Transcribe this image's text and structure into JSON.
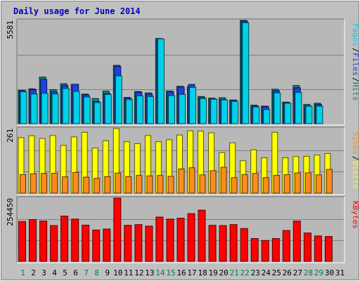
{
  "title": "Daily usage for June 2014",
  "colors": {
    "background": "#c0c0c0",
    "panel": "#b8b8b8",
    "pages": "#00d0e8",
    "files": "#2040e0",
    "hits": "#008880",
    "visits": "#ffff00",
    "sites": "#ff8c1a",
    "kbytes": "#ff0000",
    "title_text": "#0000c0",
    "weekend_day": "#008040"
  },
  "chart_data": [
    {
      "type": "bar",
      "title": "Daily usage for June 2014",
      "max_label": "5581",
      "ylim": [
        0,
        5581
      ],
      "categories": [
        "1",
        "2",
        "3",
        "4",
        "5",
        "6",
        "7",
        "8",
        "9",
        "10",
        "11",
        "12",
        "13",
        "14",
        "15",
        "16",
        "17",
        "18",
        "19",
        "20",
        "21",
        "22",
        "23",
        "24",
        "25",
        "26",
        "27",
        "28",
        "29",
        "30",
        "31"
      ],
      "ylabels": [
        {
          "text": "Pages",
          "color": "#00d0e8"
        },
        {
          "text": "Files",
          "color": "#2040e0"
        },
        {
          "text": "Hits",
          "color": "#008880"
        }
      ],
      "series": [
        {
          "name": "Hits",
          "values": [
            1800,
            1880,
            2520,
            1840,
            2160,
            2120,
            1600,
            1360,
            1760,
            3150,
            1420,
            1740,
            1660,
            4600,
            1760,
            2020,
            2000,
            1470,
            1380,
            1400,
            1280,
            5581,
            1000,
            950,
            1860,
            1160,
            2060,
            1040,
            1100,
            0,
            0
          ]
        },
        {
          "name": "Files",
          "values": [
            1780,
            1840,
            2390,
            1720,
            2060,
            2130,
            1560,
            1200,
            1620,
            3100,
            1380,
            1700,
            1600,
            4580,
            1720,
            1980,
            2120,
            1400,
            1340,
            1300,
            1260,
            5540,
            960,
            920,
            1780,
            1140,
            1940,
            960,
            1040,
            0,
            0
          ]
        },
        {
          "name": "Pages",
          "values": [
            1720,
            1600,
            1640,
            1600,
            1900,
            1740,
            1440,
            1140,
            1580,
            2580,
            1300,
            1500,
            1460,
            4580,
            1520,
            1580,
            1960,
            1360,
            1320,
            1280,
            1200,
            5450,
            900,
            760,
            1660,
            1100,
            1680,
            940,
            940,
            0,
            0
          ]
        }
      ]
    },
    {
      "type": "bar",
      "max_label": "261",
      "ylim": [
        0,
        261
      ],
      "categories": [
        "1",
        "2",
        "3",
        "4",
        "5",
        "6",
        "7",
        "8",
        "9",
        "10",
        "11",
        "12",
        "13",
        "14",
        "15",
        "16",
        "17",
        "18",
        "19",
        "20",
        "21",
        "22",
        "23",
        "24",
        "25",
        "26",
        "27",
        "28",
        "29",
        "30",
        "31"
      ],
      "ylabels": [
        {
          "text": "Sites",
          "color": "#ff8c1a"
        },
        {
          "text": "Visits",
          "color": "#ffff00"
        }
      ],
      "series": [
        {
          "name": "Visits",
          "values": [
            224,
            232,
            221,
            233,
            193,
            227,
            246,
            182,
            212,
            261,
            208,
            200,
            233,
            208,
            216,
            235,
            252,
            251,
            244,
            164,
            203,
            131,
            175,
            143,
            246,
            143,
            148,
            149,
            154,
            160,
            0
          ]
        },
        {
          "name": "Sites",
          "values": [
            75,
            78,
            80,
            80,
            66,
            84,
            65,
            60,
            67,
            81,
            67,
            72,
            70,
            72,
            68,
            98,
            103,
            74,
            91,
            105,
            63,
            75,
            80,
            63,
            72,
            75,
            82,
            82,
            74,
            96,
            0
          ]
        }
      ]
    },
    {
      "type": "bar",
      "max_label": "254450",
      "ylim": [
        0,
        254450
      ],
      "categories": [
        "1",
        "2",
        "3",
        "4",
        "5",
        "6",
        "7",
        "8",
        "9",
        "10",
        "11",
        "12",
        "13",
        "14",
        "15",
        "16",
        "17",
        "18",
        "19",
        "20",
        "21",
        "22",
        "23",
        "24",
        "25",
        "26",
        "27",
        "28",
        "29",
        "30",
        "31"
      ],
      "ylabels": [
        {
          "text": "KBytes",
          "color": "#ff0000"
        }
      ],
      "series": [
        {
          "name": "KBytes",
          "values": [
            160000,
            168000,
            162000,
            144000,
            182000,
            170000,
            146000,
            126000,
            130000,
            254450,
            145000,
            148000,
            142000,
            178000,
            170000,
            174000,
            192000,
            206000,
            145000,
            144000,
            148000,
            132000,
            92000,
            84000,
            92000,
            124000,
            162000,
            114000,
            102000,
            100000,
            0
          ]
        }
      ]
    }
  ],
  "weekend_days": [
    "1",
    "7",
    "8",
    "14",
    "15",
    "21",
    "22",
    "28",
    "29"
  ]
}
